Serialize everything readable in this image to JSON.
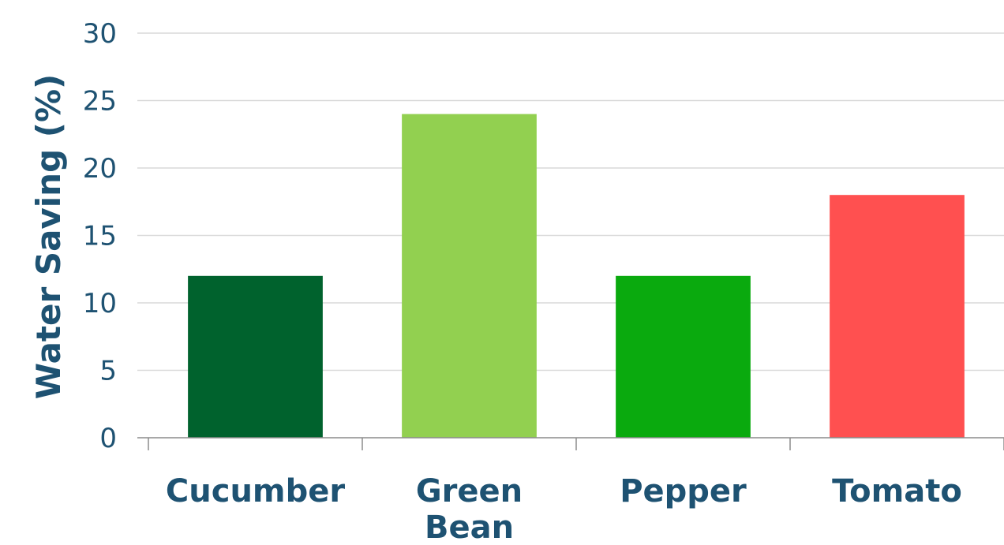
{
  "chart_data": {
    "type": "bar",
    "title": "",
    "xlabel": "",
    "ylabel": "Water Saving (%)",
    "ylim": [
      0,
      30
    ],
    "yticks": [
      0,
      5,
      10,
      15,
      20,
      25,
      30
    ],
    "grid": true,
    "legend": "none",
    "categories": [
      {
        "lines": [
          "Cucumber"
        ],
        "value": 12,
        "color": "#00622d"
      },
      {
        "lines": [
          "Green",
          "Bean"
        ],
        "value": 24,
        "color": "#92d050"
      },
      {
        "lines": [
          "Pepper"
        ],
        "value": 12,
        "color": "#0aaa0e"
      },
      {
        "lines": [
          "Tomato"
        ],
        "value": 18,
        "color": "#ff5050"
      }
    ]
  }
}
